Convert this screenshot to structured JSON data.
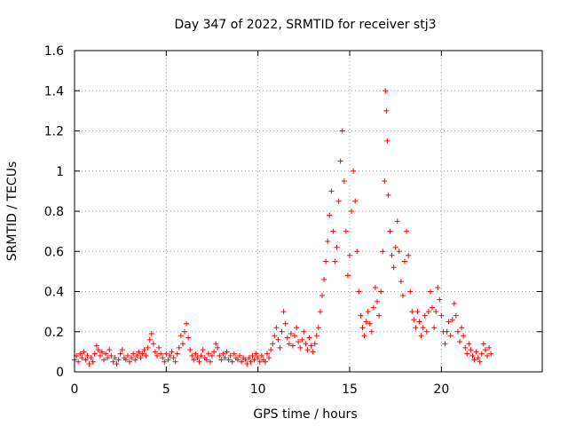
{
  "colors": {
    "series": "#ff0000",
    "axis": "#000000",
    "grid": "#a0a0a0"
  },
  "chart_data": {
    "type": "scatter",
    "title": "Day 347 of 2022, SRMTID for receiver stj3",
    "xlabel": "GPS time / hours",
    "ylabel": "SRMTID / TECUs",
    "xlim": [
      0,
      25.5
    ],
    "ylim": [
      0,
      1.6
    ],
    "xticks": [
      0,
      5,
      10,
      15,
      20
    ],
    "xtick_labels": [
      "0",
      "5",
      "10",
      "15",
      "20"
    ],
    "yticks": [
      0,
      0.2,
      0.4,
      0.6,
      0.8,
      1.0,
      1.2,
      1.4,
      1.6
    ],
    "ytick_labels": [
      "0",
      "0.2",
      "0.4",
      "0.6",
      "0.8",
      "1",
      "1.2",
      "1.4",
      "1.6"
    ],
    "grid": true,
    "marker": "plus",
    "series": [
      {
        "name": "SRMTID",
        "points": [
          [
            0.0,
            0.06
          ],
          [
            0.1,
            0.08
          ],
          [
            0.2,
            0.05
          ],
          [
            0.3,
            0.09
          ],
          [
            0.4,
            0.07
          ],
          [
            0.5,
            0.1
          ],
          [
            0.6,
            0.06
          ],
          [
            0.7,
            0.08
          ],
          [
            0.8,
            0.04
          ],
          [
            0.9,
            0.07
          ],
          [
            1.0,
            0.05
          ],
          [
            1.1,
            0.09
          ],
          [
            1.2,
            0.13
          ],
          [
            1.3,
            0.11
          ],
          [
            1.4,
            0.08
          ],
          [
            1.5,
            0.1
          ],
          [
            1.6,
            0.06
          ],
          [
            1.7,
            0.09
          ],
          [
            1.8,
            0.07
          ],
          [
            1.9,
            0.11
          ],
          [
            2.0,
            0.08
          ],
          [
            2.1,
            0.05
          ],
          [
            2.2,
            0.07
          ],
          [
            2.3,
            0.04
          ],
          [
            2.4,
            0.06
          ],
          [
            2.5,
            0.09
          ],
          [
            2.6,
            0.11
          ],
          [
            2.7,
            0.07
          ],
          [
            2.8,
            0.06
          ],
          [
            2.9,
            0.08
          ],
          [
            3.0,
            0.05
          ],
          [
            3.1,
            0.07
          ],
          [
            3.2,
            0.09
          ],
          [
            3.3,
            0.06
          ],
          [
            3.4,
            0.08
          ],
          [
            3.5,
            0.1
          ],
          [
            3.6,
            0.07
          ],
          [
            3.7,
            0.09
          ],
          [
            3.8,
            0.11
          ],
          [
            3.9,
            0.08
          ],
          [
            4.0,
            0.12
          ],
          [
            4.1,
            0.16
          ],
          [
            4.2,
            0.19
          ],
          [
            4.3,
            0.14
          ],
          [
            4.4,
            0.1
          ],
          [
            4.5,
            0.08
          ],
          [
            4.6,
            0.12
          ],
          [
            4.7,
            0.09
          ],
          [
            4.8,
            0.07
          ],
          [
            4.9,
            0.05
          ],
          [
            5.0,
            0.09
          ],
          [
            5.1,
            0.06
          ],
          [
            5.2,
            0.08
          ],
          [
            5.3,
            0.1
          ],
          [
            5.4,
            0.07
          ],
          [
            5.5,
            0.05
          ],
          [
            5.6,
            0.09
          ],
          [
            5.7,
            0.12
          ],
          [
            5.8,
            0.18
          ],
          [
            5.9,
            0.14
          ],
          [
            6.0,
            0.2
          ],
          [
            6.1,
            0.24
          ],
          [
            6.2,
            0.17
          ],
          [
            6.3,
            0.11
          ],
          [
            6.4,
            0.08
          ],
          [
            6.5,
            0.06
          ],
          [
            6.6,
            0.09
          ],
          [
            6.7,
            0.07
          ],
          [
            6.8,
            0.05
          ],
          [
            6.9,
            0.08
          ],
          [
            7.0,
            0.11
          ],
          [
            7.1,
            0.07
          ],
          [
            7.2,
            0.06
          ],
          [
            7.3,
            0.09
          ],
          [
            7.4,
            0.05
          ],
          [
            7.5,
            0.08
          ],
          [
            7.6,
            0.1
          ],
          [
            7.7,
            0.14
          ],
          [
            7.8,
            0.12
          ],
          [
            7.9,
            0.08
          ],
          [
            8.0,
            0.06
          ],
          [
            8.1,
            0.09
          ],
          [
            8.2,
            0.07
          ],
          [
            8.3,
            0.1
          ],
          [
            8.4,
            0.06
          ],
          [
            8.5,
            0.08
          ],
          [
            8.6,
            0.05
          ],
          [
            8.7,
            0.09
          ],
          [
            8.8,
            0.07
          ],
          [
            8.9,
            0.06
          ],
          [
            9.0,
            0.08
          ],
          [
            9.1,
            0.05
          ],
          [
            9.2,
            0.07
          ],
          [
            9.3,
            0.06
          ],
          [
            9.4,
            0.04
          ],
          [
            9.5,
            0.07
          ],
          [
            9.6,
            0.05
          ],
          [
            9.7,
            0.08
          ],
          [
            9.8,
            0.06
          ],
          [
            9.9,
            0.09
          ],
          [
            10.0,
            0.07
          ],
          [
            10.1,
            0.05
          ],
          [
            10.2,
            0.08
          ],
          [
            10.3,
            0.06
          ],
          [
            10.4,
            0.05
          ],
          [
            10.5,
            0.09
          ],
          [
            10.6,
            0.07
          ],
          [
            10.7,
            0.11
          ],
          [
            10.8,
            0.14
          ],
          [
            10.9,
            0.18
          ],
          [
            11.0,
            0.22
          ],
          [
            11.1,
            0.16
          ],
          [
            11.2,
            0.12
          ],
          [
            11.3,
            0.2
          ],
          [
            11.4,
            0.3
          ],
          [
            11.5,
            0.24
          ],
          [
            11.6,
            0.17
          ],
          [
            11.7,
            0.14
          ],
          [
            11.8,
            0.19
          ],
          [
            11.9,
            0.13
          ],
          [
            12.0,
            0.18
          ],
          [
            12.1,
            0.22
          ],
          [
            12.2,
            0.15
          ],
          [
            12.3,
            0.12
          ],
          [
            12.4,
            0.16
          ],
          [
            12.5,
            0.2
          ],
          [
            12.6,
            0.14
          ],
          [
            12.7,
            0.11
          ],
          [
            12.8,
            0.17
          ],
          [
            12.9,
            0.13
          ],
          [
            13.0,
            0.1
          ],
          [
            13.1,
            0.14
          ],
          [
            13.2,
            0.18
          ],
          [
            13.3,
            0.22
          ],
          [
            13.4,
            0.3
          ],
          [
            13.5,
            0.38
          ],
          [
            13.6,
            0.46
          ],
          [
            13.7,
            0.55
          ],
          [
            13.8,
            0.65
          ],
          [
            13.9,
            0.78
          ],
          [
            14.0,
            0.9
          ],
          [
            14.1,
            0.7
          ],
          [
            14.2,
            0.55
          ],
          [
            14.3,
            0.62
          ],
          [
            14.4,
            0.85
          ],
          [
            14.5,
            1.05
          ],
          [
            14.6,
            1.2
          ],
          [
            14.7,
            0.95
          ],
          [
            14.8,
            0.7
          ],
          [
            14.9,
            0.48
          ],
          [
            15.0,
            0.58
          ],
          [
            15.1,
            0.8
          ],
          [
            15.2,
            1.0
          ],
          [
            15.3,
            0.85
          ],
          [
            15.4,
            0.6
          ],
          [
            15.5,
            0.4
          ],
          [
            15.6,
            0.28
          ],
          [
            15.7,
            0.22
          ],
          [
            15.8,
            0.18
          ],
          [
            15.9,
            0.25
          ],
          [
            16.0,
            0.3
          ],
          [
            16.1,
            0.24
          ],
          [
            16.2,
            0.2
          ],
          [
            16.3,
            0.32
          ],
          [
            16.4,
            0.42
          ],
          [
            16.5,
            0.35
          ],
          [
            16.6,
            0.28
          ],
          [
            16.7,
            0.4
          ],
          [
            16.8,
            0.6
          ],
          [
            16.9,
            0.95
          ],
          [
            16.95,
            1.4
          ],
          [
            17.0,
            1.3
          ],
          [
            17.05,
            1.15
          ],
          [
            17.1,
            0.88
          ],
          [
            17.2,
            0.7
          ],
          [
            17.3,
            0.58
          ],
          [
            17.4,
            0.52
          ],
          [
            17.5,
            0.62
          ],
          [
            17.6,
            0.75
          ],
          [
            17.7,
            0.6
          ],
          [
            17.8,
            0.45
          ],
          [
            17.9,
            0.38
          ],
          [
            18.0,
            0.55
          ],
          [
            18.1,
            0.7
          ],
          [
            18.2,
            0.58
          ],
          [
            18.3,
            0.4
          ],
          [
            18.4,
            0.3
          ],
          [
            18.5,
            0.26
          ],
          [
            18.6,
            0.22
          ],
          [
            18.7,
            0.3
          ],
          [
            18.8,
            0.25
          ],
          [
            18.9,
            0.18
          ],
          [
            19.0,
            0.22
          ],
          [
            19.1,
            0.28
          ],
          [
            19.2,
            0.2
          ],
          [
            19.3,
            0.3
          ],
          [
            19.4,
            0.4
          ],
          [
            19.5,
            0.32
          ],
          [
            19.6,
            0.22
          ],
          [
            19.7,
            0.3
          ],
          [
            19.8,
            0.42
          ],
          [
            19.9,
            0.36
          ],
          [
            20.0,
            0.28
          ],
          [
            20.1,
            0.2
          ],
          [
            20.2,
            0.14
          ],
          [
            20.3,
            0.2
          ],
          [
            20.4,
            0.25
          ],
          [
            20.5,
            0.18
          ],
          [
            20.6,
            0.26
          ],
          [
            20.7,
            0.34
          ],
          [
            20.8,
            0.28
          ],
          [
            20.9,
            0.2
          ],
          [
            21.0,
            0.15
          ],
          [
            21.1,
            0.22
          ],
          [
            21.2,
            0.18
          ],
          [
            21.3,
            0.12
          ],
          [
            21.4,
            0.09
          ],
          [
            21.5,
            0.14
          ],
          [
            21.6,
            0.11
          ],
          [
            21.7,
            0.08
          ],
          [
            21.8,
            0.06
          ],
          [
            21.9,
            0.1
          ],
          [
            22.0,
            0.07
          ],
          [
            22.1,
            0.05
          ],
          [
            22.2,
            0.09
          ],
          [
            22.3,
            0.14
          ],
          [
            22.4,
            0.11
          ],
          [
            22.5,
            0.08
          ],
          [
            22.6,
            0.12
          ],
          [
            22.7,
            0.09
          ]
        ]
      }
    ]
  }
}
